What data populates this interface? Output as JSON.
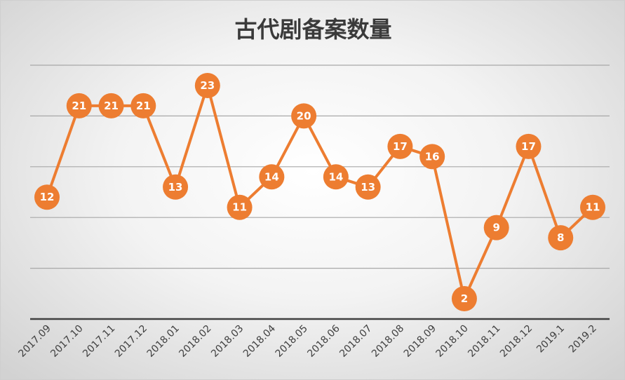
{
  "chart_data": {
    "type": "line",
    "title": "古代剧备案数量",
    "xlabel": "",
    "ylabel": "",
    "ylim": [
      0,
      25
    ],
    "grid": true,
    "legend": "none",
    "categories": [
      "2017.09",
      "2017.10",
      "2017.11",
      "2017.12",
      "2018.01",
      "2018.02",
      "2018.03",
      "2018.04",
      "2018.05",
      "2018.06",
      "2018.07",
      "2018.08",
      "2018.09",
      "2018.10",
      "2018.11",
      "2018.12",
      "2019.1",
      "2019.2"
    ],
    "series": [
      {
        "values": [
          12,
          21,
          21,
          21,
          13,
          23,
          11,
          14,
          20,
          14,
          13,
          17,
          16,
          2,
          9,
          17,
          8,
          11
        ]
      }
    ],
    "colors": {
      "line": "#ED7D31",
      "marker_text": "#ffffff",
      "grid": "#a8a8a8",
      "axis": "#404040",
      "tick_text": "#404040"
    }
  }
}
